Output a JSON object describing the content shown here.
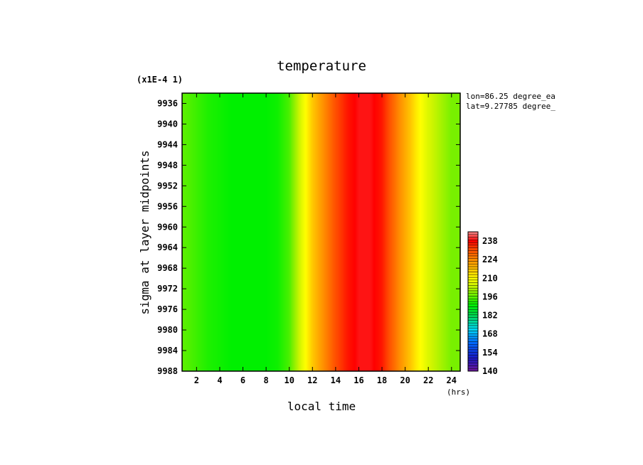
{
  "chart_data": {
    "type": "heatmap",
    "title": "temperature",
    "xlabel": "local time",
    "xunits": "(hrs)",
    "ylabel": "sigma at layer midpoints",
    "yscale_note": "(x1E-4 1)",
    "info": [
      "lon=86.25 degree_ea",
      "lat=9.27785 degree_"
    ],
    "xlim": [
      0.75,
      24.75
    ],
    "ylim": [
      9988,
      9934
    ],
    "x_ticks": [
      2,
      4,
      6,
      8,
      10,
      12,
      14,
      16,
      18,
      20,
      22,
      24
    ],
    "y_ticks": [
      9936,
      9940,
      9944,
      9948,
      9952,
      9956,
      9960,
      9964,
      9968,
      9972,
      9976,
      9980,
      9984,
      9988
    ],
    "x": [
      1,
      2,
      3,
      4,
      5,
      6,
      7,
      8,
      9,
      10,
      11,
      12,
      13,
      14,
      15,
      16,
      17,
      18,
      19,
      20,
      21,
      22,
      23,
      24
    ],
    "values": [
      196,
      194,
      192,
      191,
      190,
      190,
      190,
      190,
      191,
      195,
      206,
      216,
      224,
      231,
      236,
      239,
      239,
      236,
      228,
      220,
      212,
      206,
      202,
      198
    ],
    "colorbar": {
      "ticks": [
        140,
        154,
        168,
        182,
        196,
        210,
        224,
        238
      ],
      "range": [
        140,
        245
      ]
    }
  }
}
